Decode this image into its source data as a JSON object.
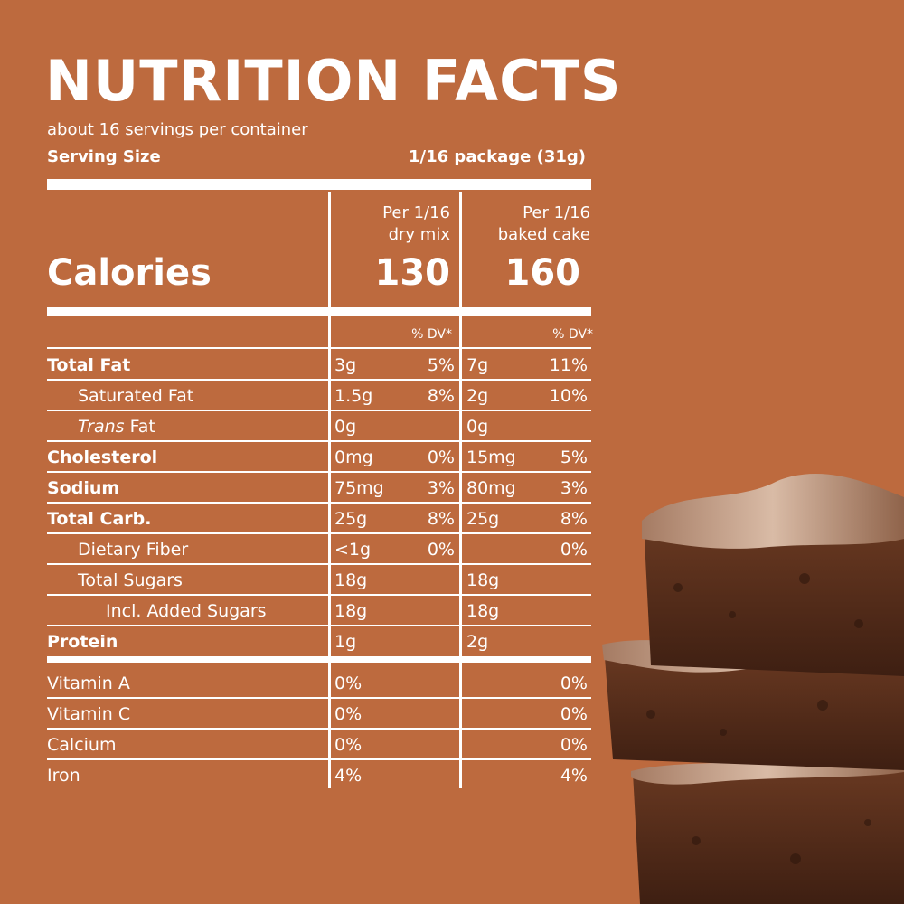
{
  "title": "NUTRITION  FACTS",
  "servings_per_container": "about 16 servings per container",
  "serving_size": {
    "label": "Serving Size",
    "value": "1/16 package (31g)"
  },
  "columns": [
    {
      "line1": "Per 1/16",
      "line2": "dry mix",
      "calories": "130"
    },
    {
      "line1": "Per 1/16",
      "line2": "baked cake",
      "calories": "160"
    }
  ],
  "calories_label": "Calories",
  "dv_header": "% DV*",
  "nutrients": [
    {
      "label": "Total Fat",
      "style": "bold",
      "amt1": "3g",
      "dv1": "5%",
      "amt2": "7g",
      "dv2": "11%"
    },
    {
      "label": "Saturated Fat",
      "style": "indent",
      "amt1": "1.5g",
      "dv1": "8%",
      "amt2": "2g",
      "dv2": "10%"
    },
    {
      "label_italic": "Trans",
      "label": " Fat",
      "style": "indent",
      "amt1": "0g",
      "dv1": "",
      "amt2": "0g",
      "dv2": ""
    },
    {
      "label": "Cholesterol",
      "style": "bold",
      "amt1": "0mg",
      "dv1": "0%",
      "amt2": "15mg",
      "dv2": "5%"
    },
    {
      "label": "Sodium",
      "style": "bold",
      "amt1": "75mg",
      "dv1": "3%",
      "amt2": "80mg",
      "dv2": "3%"
    },
    {
      "label": "Total Carb.",
      "style": "bold",
      "amt1": "25g",
      "dv1": "8%",
      "amt2": "25g",
      "dv2": "8%"
    },
    {
      "label": "Dietary Fiber",
      "style": "indent",
      "amt1": "<1g",
      "dv1": "0%",
      "amt2": "",
      "dv2": "0%"
    },
    {
      "label": "Total Sugars",
      "style": "indent",
      "amt1": "18g",
      "dv1": "",
      "amt2": "18g",
      "dv2": ""
    },
    {
      "label": "Incl. Added Sugars",
      "style": "indent2",
      "amt1": "18g",
      "dv1": "",
      "amt2": "18g",
      "dv2": ""
    },
    {
      "label": "Protein",
      "style": "bold",
      "amt1": "1g",
      "dv1": "",
      "amt2": "2g",
      "dv2": ""
    }
  ],
  "vitamins": [
    {
      "label": "Vitamin A",
      "amt1": "0%",
      "dv2": "0%"
    },
    {
      "label": "Vitamin C",
      "amt1": "0%",
      "dv2": "0%"
    },
    {
      "label": "Calcium",
      "amt1": "0%",
      "dv2": "0%"
    },
    {
      "label": "Iron",
      "amt1": "4%",
      "dv2": "4%"
    }
  ],
  "colors": {
    "background": "#bd6a3e",
    "text": "#ffffff"
  }
}
